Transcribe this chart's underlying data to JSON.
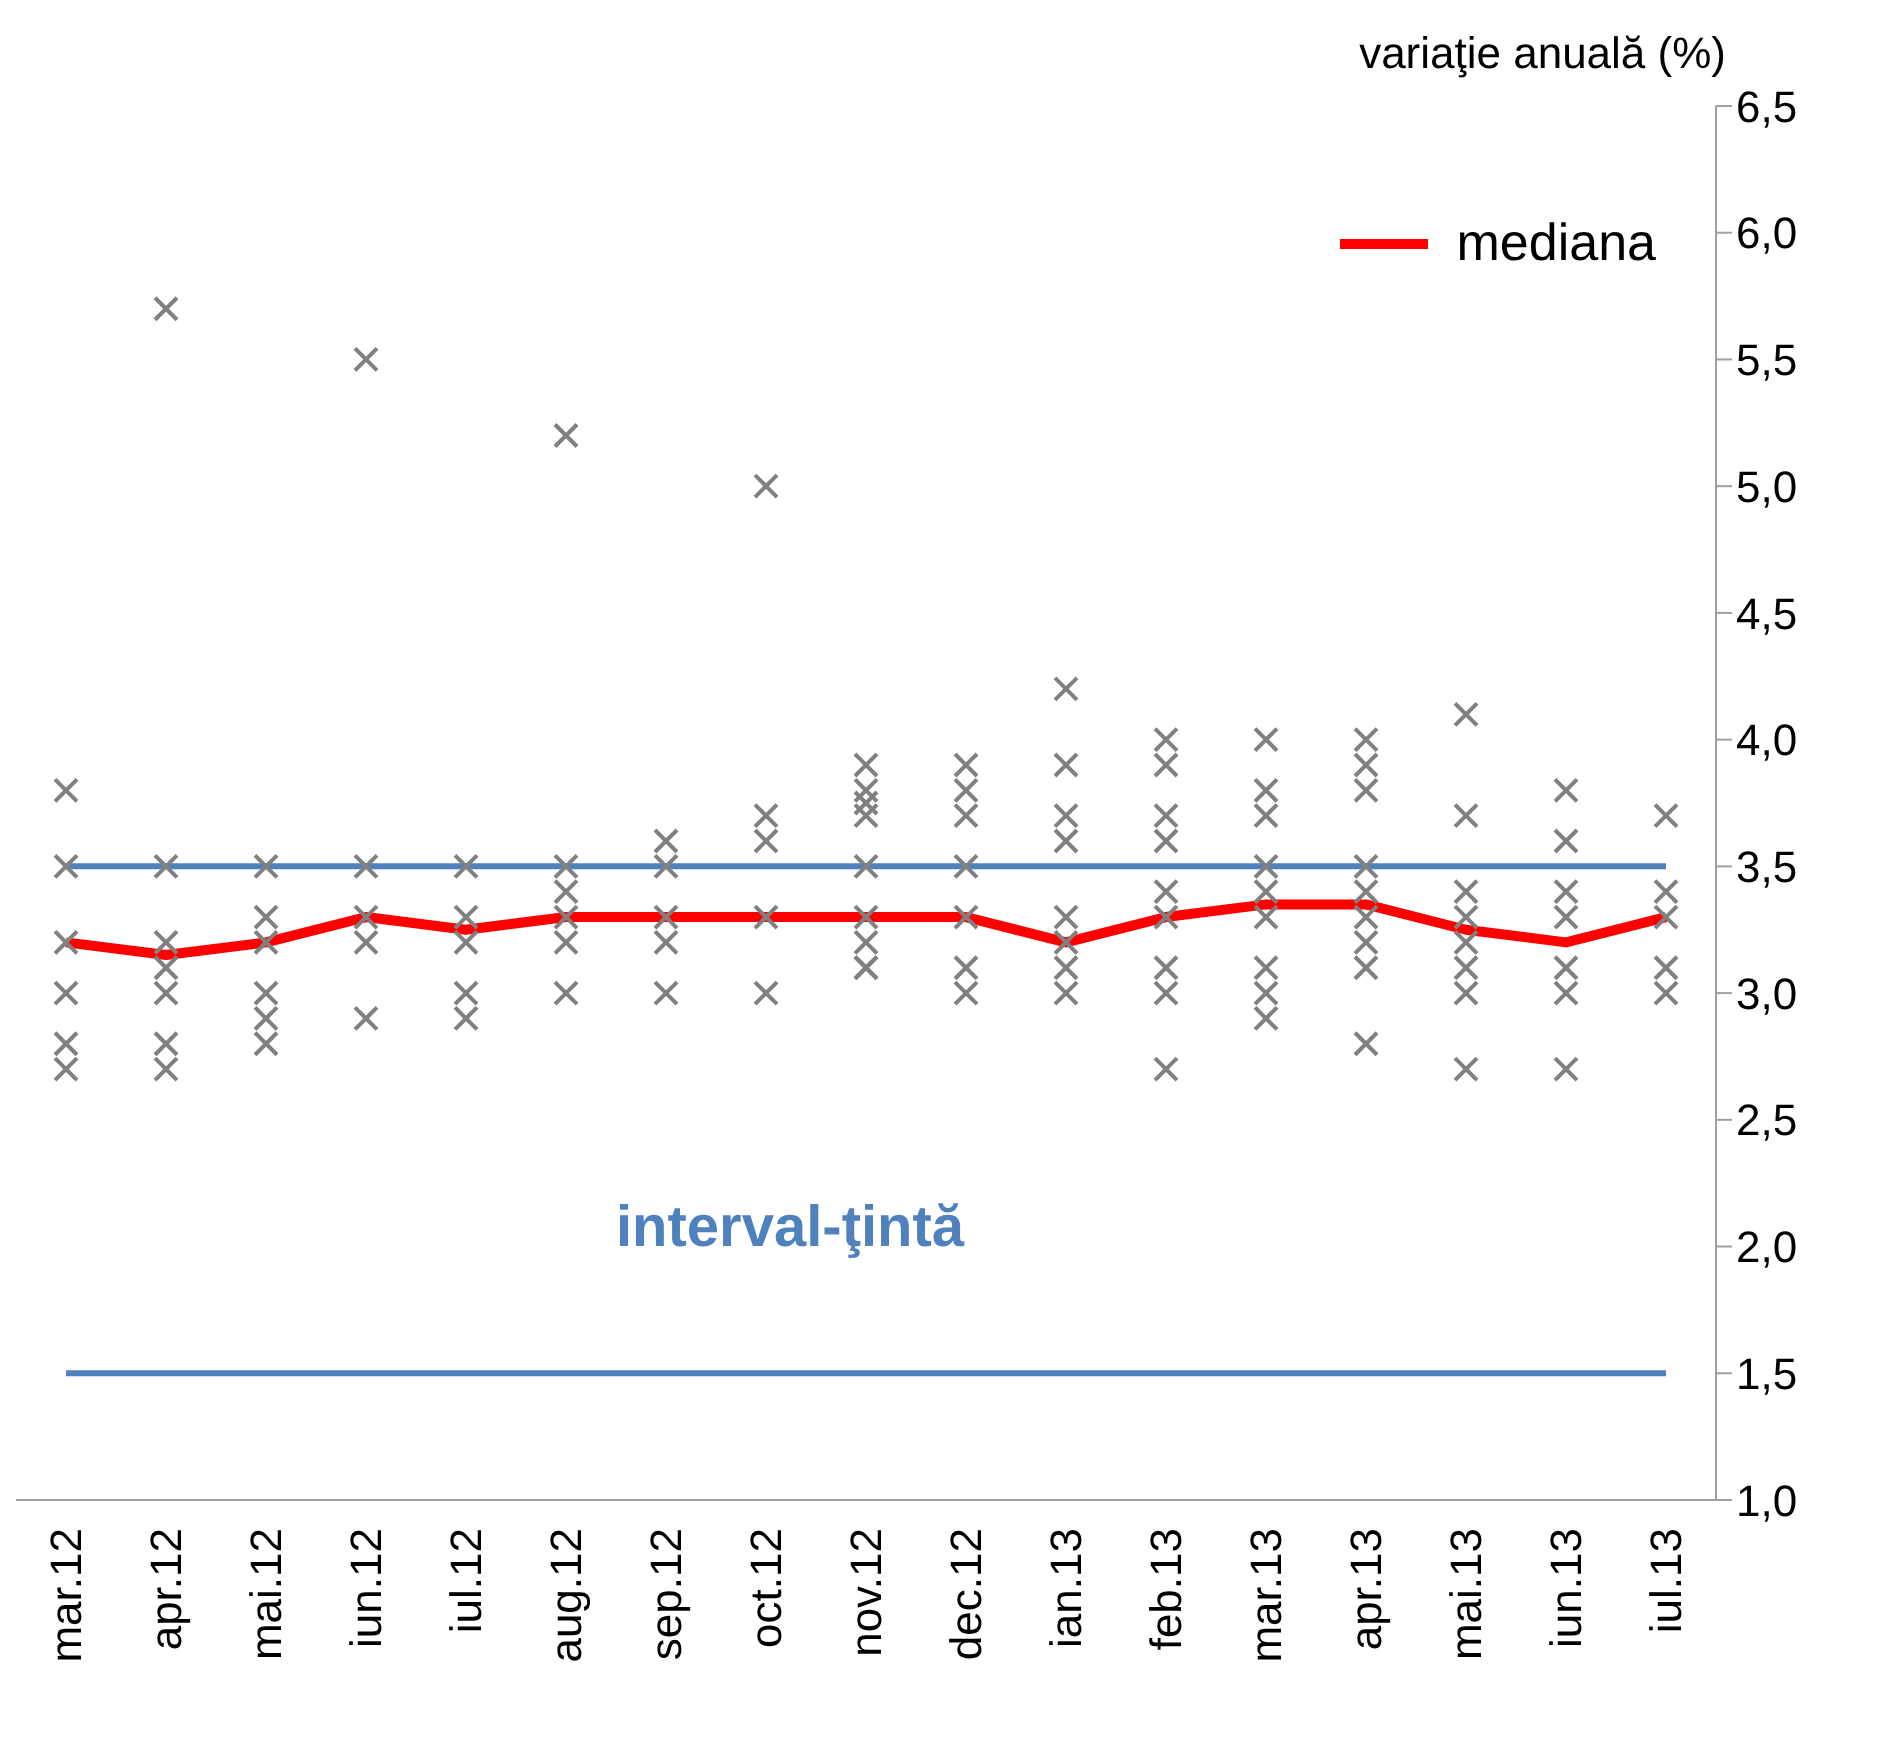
{
  "chart_data": {
    "type": "line",
    "ylabel": "variaţie anuală (%)",
    "categories": [
      "mar.12",
      "apr.12",
      "mai.12",
      "iun.12",
      "iul.12",
      "aug.12",
      "sep.12",
      "oct.12",
      "nov.12",
      "dec.12",
      "ian.13",
      "feb.13",
      "mar.13",
      "apr.13",
      "mai.13",
      "iun.13",
      "iul.13"
    ],
    "series": [
      {
        "type": "scatter",
        "color": "#808080",
        "marker": "cross",
        "x": [
          "mar.12",
          "mar.12",
          "mar.12",
          "mar.12",
          "mar.12",
          "mar.12",
          "apr.12",
          "apr.12",
          "apr.12",
          "apr.12",
          "apr.12",
          "apr.12",
          "apr.12",
          "mai.12",
          "mai.12",
          "mai.12",
          "mai.12",
          "mai.12",
          "mai.12",
          "iun.12",
          "iun.12",
          "iun.12",
          "iun.12",
          "iun.12",
          "iul.12",
          "iul.12",
          "iul.12",
          "iul.12",
          "iul.12",
          "aug.12",
          "aug.12",
          "aug.12",
          "aug.12",
          "aug.12",
          "aug.12",
          "sep.12",
          "sep.12",
          "sep.12",
          "sep.12",
          "sep.12",
          "oct.12",
          "oct.12",
          "oct.12",
          "oct.12",
          "oct.12",
          "nov.12",
          "nov.12",
          "nov.12",
          "nov.12",
          "nov.12",
          "nov.12",
          "nov.12",
          "nov.12",
          "nov.12",
          "dec.12",
          "dec.12",
          "dec.12",
          "dec.12",
          "dec.12",
          "dec.12",
          "dec.12",
          "ian.13",
          "ian.13",
          "ian.13",
          "ian.13",
          "ian.13",
          "ian.13",
          "ian.13",
          "ian.13",
          "feb.13",
          "feb.13",
          "feb.13",
          "feb.13",
          "feb.13",
          "feb.13",
          "feb.13",
          "feb.13",
          "feb.13",
          "mar.13",
          "mar.13",
          "mar.13",
          "mar.13",
          "mar.13",
          "mar.13",
          "mar.13",
          "mar.13",
          "mar.13",
          "apr.13",
          "apr.13",
          "apr.13",
          "apr.13",
          "apr.13",
          "apr.13",
          "apr.13",
          "apr.13",
          "apr.13",
          "mai.13",
          "mai.13",
          "mai.13",
          "mai.13",
          "mai.13",
          "mai.13",
          "mai.13",
          "mai.13",
          "iun.13",
          "iun.13",
          "iun.13",
          "iun.13",
          "iun.13",
          "iun.13",
          "iun.13",
          "iul.13",
          "iul.13",
          "iul.13",
          "iul.13",
          "iul.13"
        ],
        "values": [
          3.8,
          3.5,
          3.2,
          3.0,
          2.8,
          2.7,
          5.7,
          3.5,
          3.2,
          3.1,
          3.0,
          2.8,
          2.7,
          3.5,
          3.3,
          3.2,
          3.0,
          2.9,
          2.8,
          5.5,
          3.5,
          3.3,
          3.2,
          2.9,
          3.5,
          3.3,
          3.2,
          3.0,
          2.9,
          5.2,
          3.5,
          3.4,
          3.3,
          3.2,
          3.0,
          3.6,
          3.5,
          3.3,
          3.2,
          3.0,
          5.0,
          3.7,
          3.6,
          3.3,
          3.0,
          3.9,
          3.8,
          3.75,
          3.7,
          3.5,
          3.3,
          3.2,
          3.1,
          3.1,
          3.9,
          3.8,
          3.7,
          3.5,
          3.3,
          3.1,
          3.0,
          4.2,
          3.9,
          3.7,
          3.6,
          3.3,
          3.2,
          3.1,
          3.0,
          4.0,
          3.9,
          3.7,
          3.6,
          3.4,
          3.3,
          3.1,
          3.0,
          2.7,
          4.0,
          3.8,
          3.7,
          3.5,
          3.4,
          3.3,
          3.1,
          3.0,
          2.9,
          4.0,
          3.9,
          3.8,
          3.5,
          3.4,
          3.3,
          3.2,
          3.1,
          2.8,
          4.1,
          3.7,
          3.4,
          3.3,
          3.2,
          3.1,
          3.0,
          2.7,
          3.8,
          3.6,
          3.4,
          3.3,
          3.1,
          3.0,
          2.7,
          3.7,
          3.4,
          3.3,
          3.1,
          3.0
        ]
      },
      {
        "name": "mediana",
        "color": "#ff0000",
        "marker": "none",
        "values": [
          3.2,
          3.15,
          3.2,
          3.3,
          3.25,
          3.3,
          3.3,
          3.3,
          3.3,
          3.3,
          3.2,
          3.3,
          3.35,
          3.35,
          3.25,
          3.2,
          3.3
        ]
      }
    ],
    "ylim": [
      1,
      6.5
    ],
    "yticks": [
      {
        "value": 1,
        "label": "1,0"
      },
      {
        "value": 1.5,
        "label": "1,5"
      },
      {
        "value": 2,
        "label": "2,0"
      },
      {
        "value": 2.5,
        "label": "2,5"
      },
      {
        "value": 3,
        "label": "3,0"
      },
      {
        "value": 3.5,
        "label": "3,5"
      },
      {
        "value": 4,
        "label": "4,0"
      },
      {
        "value": 4.5,
        "label": "4,5"
      },
      {
        "value": 5,
        "label": "5,0"
      },
      {
        "value": 5.5,
        "label": "5,5"
      },
      {
        "value": 6,
        "label": "6,0"
      },
      {
        "value": 6.5,
        "label": "6,5"
      }
    ],
    "ref_lines": [
      {
        "axis": "y",
        "value": 3.5,
        "color": "#4f81bd"
      },
      {
        "axis": "y",
        "value": 1.5,
        "color": "#4f81bd"
      }
    ],
    "annotations": [
      "interval-ţintă"
    ],
    "grid": false,
    "legend": "top right"
  }
}
